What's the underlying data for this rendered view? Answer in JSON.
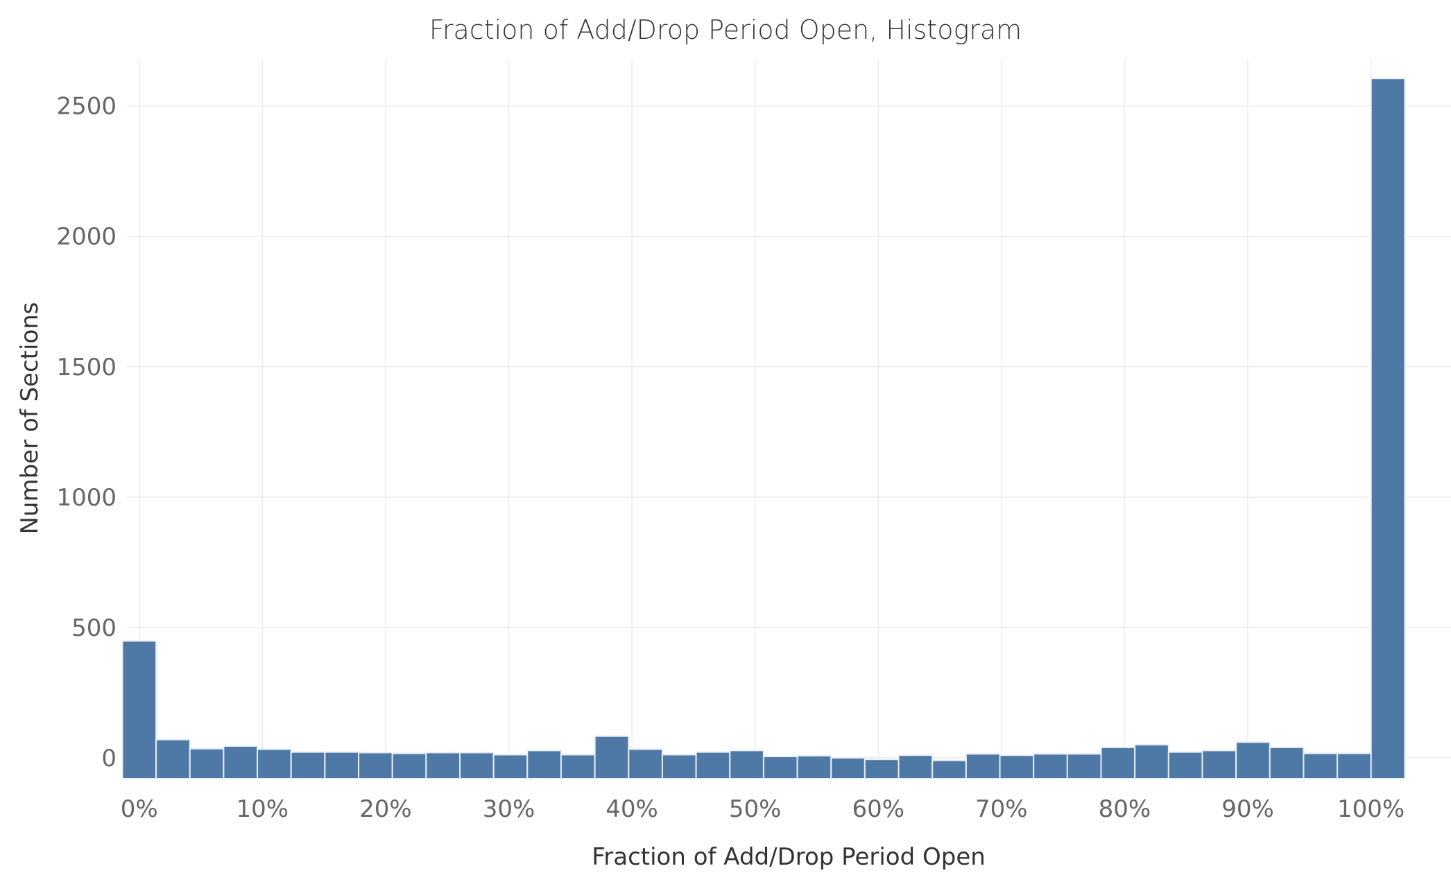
{
  "colors": {
    "bar": "#4E79A7",
    "grid": "#ececec",
    "text": "#333333",
    "tick_text": "#666666"
  },
  "chart_data": {
    "type": "bar",
    "title": "Fraction of Add/Drop Period Open, Histogram",
    "xlabel": "Fraction of Add/Drop Period Open",
    "ylabel": "Number of Sections",
    "grid": true,
    "legend": "none",
    "ylim": [
      -80,
      2680
    ],
    "xlim": [
      -0.01,
      1.065
    ],
    "bin_width": 0.0274,
    "x_start": -0.0137,
    "x_ticks": [
      0,
      0.1,
      0.2,
      0.3,
      0.4,
      0.5,
      0.6,
      0.7,
      0.8,
      0.9,
      1.0
    ],
    "x_tick_labels": [
      "0%",
      "10%",
      "20%",
      "30%",
      "40%",
      "50%",
      "60%",
      "70%",
      "80%",
      "90%",
      "100%"
    ],
    "y_ticks": [
      0,
      500,
      1000,
      1500,
      2000,
      2500
    ],
    "y_tick_labels": [
      "0",
      "500",
      "1000",
      "1500",
      "2000",
      "2500"
    ],
    "values": [
      448,
      70,
      35,
      45,
      33,
      22,
      22,
      20,
      17,
      20,
      20,
      12,
      28,
      12,
      83,
      33,
      12,
      22,
      28,
      5,
      8,
      0,
      -6,
      10,
      -10,
      15,
      10,
      15,
      15,
      40,
      50,
      22,
      28,
      60,
      40,
      17,
      17,
      2605
    ]
  }
}
